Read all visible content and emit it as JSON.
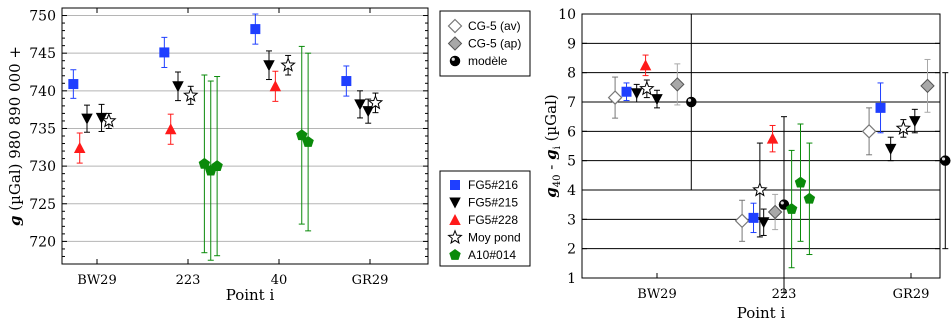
{
  "chart_data": [
    {
      "type": "scatter",
      "ylabel_symbol": "g",
      "ylabel_unit": "(µGal)",
      "ylabel_offset": "980 890 000 +",
      "xlabel": "Point i",
      "categories": [
        "BW29",
        "223",
        "40",
        "GR29"
      ],
      "ylim": [
        717,
        751
      ],
      "yticks": [
        720,
        725,
        730,
        735,
        740,
        745,
        750
      ],
      "legend_position": "right",
      "series": [
        {
          "name": "FG5#216",
          "marker": "square",
          "color": "#1f3fff",
          "points": [
            {
              "cat": 0,
              "off": -0.26,
              "y": 740.9,
              "err": 1.9
            },
            {
              "cat": 1,
              "off": -0.26,
              "y": 745.1,
              "err": 2.0
            },
            {
              "cat": 2,
              "off": -0.26,
              "y": 748.2,
              "err": 2.0
            },
            {
              "cat": 3,
              "off": -0.26,
              "y": 741.3,
              "err": 2.0
            }
          ]
        },
        {
          "name": "FG5#215",
          "marker": "triangle-down",
          "color": "#000000",
          "points": [
            {
              "cat": 0,
              "off": -0.11,
              "y": 736.3,
              "err": 1.8
            },
            {
              "cat": 0,
              "off": 0.05,
              "y": 736.4,
              "err": 1.8
            },
            {
              "cat": 1,
              "off": -0.11,
              "y": 740.6,
              "err": 1.9
            },
            {
              "cat": 2,
              "off": -0.11,
              "y": 743.4,
              "err": 1.9
            },
            {
              "cat": 3,
              "off": -0.11,
              "y": 738.2,
              "err": 1.8
            },
            {
              "cat": 3,
              "off": -0.02,
              "y": 737.3,
              "err": 1.6
            }
          ]
        },
        {
          "name": "FG5#228",
          "marker": "triangle-up",
          "color": "#ff1a1a",
          "points": [
            {
              "cat": 0,
              "off": -0.19,
              "y": 732.4,
              "err": 2.0
            },
            {
              "cat": 1,
              "off": -0.19,
              "y": 734.9,
              "err": 2.0
            },
            {
              "cat": 2,
              "off": -0.04,
              "y": 740.6,
              "err": 2.0
            }
          ]
        },
        {
          "name": "Moy pond",
          "marker": "star",
          "color": "#000000",
          "points": [
            {
              "cat": 0,
              "off": 0.13,
              "y": 736.0,
              "err": 1.0
            },
            {
              "cat": 1,
              "off": 0.03,
              "y": 739.4,
              "err": 1.2
            },
            {
              "cat": 2,
              "off": 0.1,
              "y": 743.4,
              "err": 1.3
            },
            {
              "cat": 3,
              "off": 0.06,
              "y": 738.4,
              "err": 1.3
            }
          ]
        },
        {
          "name": "A10#014",
          "marker": "pentagon",
          "color": "#0a8a0a",
          "points": [
            {
              "cat": 1,
              "off": 0.18,
              "y": 730.3,
              "err": 11.8
            },
            {
              "cat": 1,
              "off": 0.25,
              "y": 729.4,
              "err": 11.9
            },
            {
              "cat": 1,
              "off": 0.32,
              "y": 730.0,
              "err": 11.9
            },
            {
              "cat": 2,
              "off": 0.25,
              "y": 734.1,
              "err": 11.8
            },
            {
              "cat": 2,
              "off": 0.32,
              "y": 733.2,
              "err": 11.8
            }
          ]
        }
      ]
    },
    {
      "type": "scatter",
      "ylabel": "g40 - gi (µGal)",
      "ylabel_main": "g",
      "ylabel_sub1": "40",
      "ylabel_mid": " - ",
      "ylabel_main2": "g",
      "ylabel_sub2": "i",
      "ylabel_unit": " (µGal)",
      "xlabel": "Point i",
      "categories": [
        "BW29",
        "223",
        "GR29"
      ],
      "ylim": [
        1,
        10
      ],
      "yticks": [
        1,
        2,
        3,
        4,
        5,
        6,
        7,
        8,
        9,
        10
      ],
      "legend_position": "top-left",
      "series": [
        {
          "name": "CG-5 (av)",
          "marker": "diamond-open",
          "color": "#777777",
          "points": [
            {
              "cat": 0,
              "off": -0.33,
              "y": 7.15,
              "err": 0.7
            },
            {
              "cat": 1,
              "off": -0.33,
              "y": 2.95,
              "err": 0.7
            },
            {
              "cat": 2,
              "off": -0.33,
              "y": 6.0,
              "err": 0.8
            }
          ]
        },
        {
          "name": "CG-5 (ap)",
          "marker": "diamond-filled",
          "color": "#a8a8a8",
          "points": [
            {
              "cat": 0,
              "off": 0.16,
              "y": 7.6,
              "err": 0.7
            },
            {
              "cat": 1,
              "off": -0.07,
              "y": 3.25,
              "err": 0.6
            },
            {
              "cat": 2,
              "off": 0.13,
              "y": 7.55,
              "err": 0.9
            }
          ]
        },
        {
          "name": "modèle",
          "marker": "ball",
          "color": "#000000",
          "points": [
            {
              "cat": 0,
              "off": 0.27,
              "y": 7.0,
              "err": 3.0
            },
            {
              "cat": 1,
              "off": 0.0,
              "y": 3.5,
              "err": 3.0
            },
            {
              "cat": 2,
              "off": 0.27,
              "y": 5.0,
              "err": 3.0
            }
          ]
        },
        {
          "name": "FG5#216",
          "marker": "square",
          "color": "#1f3fff",
          "points": [
            {
              "cat": 0,
              "off": -0.24,
              "y": 7.35,
              "err": 0.3
            },
            {
              "cat": 1,
              "off": -0.24,
              "y": 3.05,
              "err": 0.5
            },
            {
              "cat": 2,
              "off": -0.24,
              "y": 6.8,
              "err": 0.85
            }
          ]
        },
        {
          "name": "FG5#215",
          "marker": "triangle-down",
          "color": "#000000",
          "points": [
            {
              "cat": 0,
              "off": -0.16,
              "y": 7.3,
              "err": 0.3
            },
            {
              "cat": 0,
              "off": 0.0,
              "y": 7.1,
              "err": 0.3
            },
            {
              "cat": 1,
              "off": -0.16,
              "y": 2.9,
              "err": 0.45
            },
            {
              "cat": 2,
              "off": -0.16,
              "y": 5.4,
              "err": 0.4
            },
            {
              "cat": 2,
              "off": 0.03,
              "y": 6.35,
              "err": 0.4
            }
          ]
        },
        {
          "name": "FG5#228",
          "marker": "triangle-up",
          "color": "#ff1a1a",
          "points": [
            {
              "cat": 0,
              "off": -0.09,
              "y": 8.25,
              "err": 0.35
            },
            {
              "cat": 1,
              "off": -0.09,
              "y": 5.75,
              "err": 0.45
            }
          ]
        },
        {
          "name": "Moy pond",
          "marker": "star",
          "color": "#000000",
          "points": [
            {
              "cat": 0,
              "off": -0.08,
              "y": 7.45,
              "err": 0.3
            },
            {
              "cat": 1,
              "off": -0.19,
              "y": 4.0,
              "err": 1.6
            },
            {
              "cat": 2,
              "off": -0.06,
              "y": 6.1,
              "err": 0.3
            }
          ]
        },
        {
          "name": "A10#014",
          "marker": "pentagon",
          "color": "#0a8a0a",
          "points": [
            {
              "cat": 1,
              "off": 0.06,
              "y": 3.35,
              "err": 2.0
            },
            {
              "cat": 1,
              "off": 0.13,
              "y": 4.25,
              "err": 2.0
            },
            {
              "cat": 1,
              "off": 0.2,
              "y": 3.7,
              "err": 1.9
            }
          ]
        }
      ]
    }
  ]
}
